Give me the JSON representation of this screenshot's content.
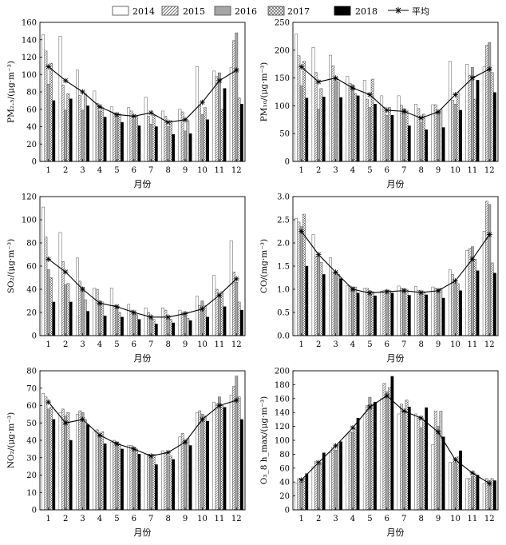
{
  "legend": {
    "s2014": "2014",
    "s2015": "2015",
    "s2016": "2016",
    "s2017": "2017",
    "s2018": "2018",
    "avg": "平均"
  },
  "colors": {
    "s2016": "#a6a6a6",
    "s2018": "#000000",
    "line": "#000000",
    "bar_stroke": "#444444"
  },
  "series_names": [
    "2014",
    "2015",
    "2016",
    "2017",
    "2018"
  ],
  "chart_data": [
    {
      "id": "pm25",
      "type": "bar",
      "ylabel": "PM₂.₅/(μg·m⁻³)",
      "xlabel": "月份",
      "categories": [
        "1",
        "2",
        "3",
        "4",
        "5",
        "6",
        "7",
        "8",
        "9",
        "10",
        "11",
        "12"
      ],
      "ylim": [
        0,
        160
      ],
      "yticks": [
        0,
        20,
        40,
        60,
        80,
        100,
        120,
        140,
        160
      ],
      "series": [
        {
          "name": "2014",
          "values": [
            146,
            144,
            105,
            81,
            63,
            62,
            74,
            58,
            60,
            109,
            104,
            108
          ]
        },
        {
          "name": "2015",
          "values": [
            127,
            88,
            76,
            67,
            55,
            58,
            52,
            52,
            57,
            65,
            98,
            139
          ]
        },
        {
          "name": "2016",
          "values": [
            89,
            59,
            59,
            58,
            52,
            48,
            43,
            40,
            35,
            54,
            102,
            148
          ]
        },
        {
          "name": "2017",
          "values": [
            113,
            78,
            78,
            62,
            55,
            52,
            53,
            47,
            47,
            62,
            60,
            73
          ]
        },
        {
          "name": "2018",
          "values": [
            70,
            72,
            64,
            51,
            45,
            41,
            40,
            31,
            32,
            48,
            84,
            66
          ]
        }
      ],
      "average": [
        109,
        93,
        80,
        63,
        54,
        52,
        56,
        45,
        48,
        68,
        93,
        105
      ]
    },
    {
      "id": "pm10",
      "type": "bar",
      "ylabel": "PM₁₀/(μg·m⁻³)",
      "xlabel": "月份",
      "categories": [
        "1",
        "2",
        "3",
        "4",
        "5",
        "6",
        "7",
        "8",
        "9",
        "10",
        "11",
        "12"
      ],
      "ylim": [
        0,
        250
      ],
      "yticks": [
        0,
        50,
        100,
        150,
        200,
        250
      ],
      "series": [
        {
          "name": "2014",
          "values": [
            229,
            205,
            191,
            153,
            146,
            118,
            118,
            103,
            102,
            180,
            175,
            170
          ]
        },
        {
          "name": "2015",
          "values": [
            190,
            160,
            172,
            140,
            112,
            97,
            101,
            95,
            102,
            110,
            155,
            209
          ]
        },
        {
          "name": "2016",
          "values": [
            136,
            94,
            150,
            138,
            97,
            83,
            95,
            71,
            86,
            103,
            169,
            214
          ]
        },
        {
          "name": "2017",
          "values": [
            180,
            131,
            143,
            122,
            148,
            97,
            92,
            85,
            93,
            124,
            112,
            160
          ]
        },
        {
          "name": "2018",
          "values": [
            114,
            116,
            115,
            118,
            103,
            83,
            64,
            57,
            61,
            92,
            146,
            124
          ]
        }
      ],
      "average": [
        170,
        143,
        150,
        132,
        120,
        92,
        90,
        78,
        89,
        120,
        150,
        166
      ]
    },
    {
      "id": "so2",
      "type": "bar",
      "ylabel": "SO₂/(μg·m⁻³)",
      "xlabel": "月份",
      "categories": [
        "1",
        "2",
        "3",
        "4",
        "5",
        "6",
        "7",
        "8",
        "9",
        "10",
        "11",
        "12"
      ],
      "ylim": [
        0,
        120
      ],
      "yticks": [
        0,
        20,
        40,
        60,
        80,
        100,
        120
      ],
      "series": [
        {
          "name": "2014",
          "values": [
            111,
            89,
            67,
            41,
            41,
            27,
            24,
            24,
            22,
            34,
            52,
            82
          ]
        },
        {
          "name": "2015",
          "values": [
            85,
            64,
            47,
            40,
            26,
            22,
            20,
            22,
            20,
            26,
            40,
            55
          ]
        },
        {
          "name": "2016",
          "values": [
            57,
            44,
            42,
            30,
            24,
            20,
            16,
            16,
            17,
            30,
            34,
            46
          ]
        },
        {
          "name": "2017",
          "values": [
            50,
            45,
            31,
            29,
            20,
            18,
            14,
            14,
            15,
            26,
            38,
            29
          ]
        },
        {
          "name": "2018",
          "values": [
            29,
            29,
            21,
            17,
            16,
            14,
            10,
            11,
            13,
            16,
            25,
            22
          ]
        }
      ],
      "average": [
        66,
        55,
        40,
        28,
        25,
        20,
        16,
        16,
        19,
        23,
        35,
        49
      ]
    },
    {
      "id": "co",
      "type": "bar",
      "ylabel": "CO/(mg·m⁻³)",
      "xlabel": "月份",
      "categories": [
        "1",
        "2",
        "3",
        "4",
        "5",
        "6",
        "7",
        "8",
        "9",
        "10",
        "11",
        "12"
      ],
      "ylim": [
        0,
        3.0
      ],
      "yticks": [
        0,
        0.5,
        1.0,
        1.5,
        2.0,
        2.5,
        3.0
      ],
      "series": [
        {
          "name": "2014",
          "values": [
            2.53,
            2.18,
            1.68,
            1.08,
            1.02,
            0.96,
            1.07,
            1.06,
            1.05,
            1.42,
            1.84,
            2.25
          ]
        },
        {
          "name": "2015",
          "values": [
            2.45,
            1.72,
            1.37,
            1.07,
            1.02,
            0.97,
            1.02,
            0.98,
            1.02,
            1.32,
            1.88,
            2.9
          ]
        },
        {
          "name": "2016",
          "values": [
            2.35,
            1.72,
            1.38,
            1.05,
            0.97,
            0.98,
            1.01,
            0.94,
            1.0,
            1.13,
            1.92,
            2.83
          ]
        },
        {
          "name": "2017",
          "values": [
            2.62,
            1.58,
            1.32,
            1.05,
            0.95,
            0.97,
            1.0,
            0.95,
            1.02,
            1.12,
            1.65,
            1.57
          ]
        },
        {
          "name": "2018",
          "values": [
            1.5,
            1.32,
            1.23,
            0.92,
            0.86,
            0.92,
            0.87,
            0.88,
            0.81,
            0.97,
            1.4,
            1.35
          ]
        }
      ],
      "average": [
        2.25,
        1.75,
        1.37,
        1.0,
        0.92,
        0.95,
        0.97,
        0.93,
        0.97,
        1.18,
        1.65,
        2.18
      ]
    },
    {
      "id": "no2",
      "type": "bar",
      "ylabel": "NO₂/(μg·m⁻³)",
      "xlabel": "月份",
      "categories": [
        "1",
        "2",
        "3",
        "4",
        "5",
        "6",
        "7",
        "8",
        "9",
        "10",
        "11",
        "12"
      ],
      "ylim": [
        0,
        80
      ],
      "yticks": [
        0,
        10,
        20,
        30,
        40,
        50,
        60,
        70,
        80
      ],
      "series": [
        {
          "name": "2014",
          "values": [
            67,
            56,
            55,
            45,
            39,
            37,
            32,
            34,
            42,
            56,
            62,
            66
          ]
        },
        {
          "name": "2015",
          "values": [
            65,
            58,
            57,
            46,
            40,
            37,
            32,
            33,
            44,
            57,
            61,
            71
          ]
        },
        {
          "name": "2016",
          "values": [
            58,
            54,
            56,
            43,
            39,
            36,
            31,
            31,
            40,
            55,
            65,
            77
          ]
        },
        {
          "name": "2017",
          "values": [
            59,
            56,
            52,
            45,
            38,
            35,
            32,
            31,
            41,
            54,
            60,
            65
          ]
        },
        {
          "name": "2018",
          "values": [
            52,
            40,
            49,
            38,
            35,
            32,
            26,
            29,
            37,
            51,
            59,
            52
          ]
        }
      ],
      "average": [
        62,
        50,
        52,
        43,
        38,
        35,
        31,
        33,
        39,
        52,
        60,
        63
      ]
    },
    {
      "id": "o3",
      "type": "bar",
      "ylabel": "O₃_8 h_max/(μg·m⁻³)",
      "xlabel": "月份",
      "categories": [
        "1",
        "2",
        "3",
        "4",
        "5",
        "6",
        "7",
        "8",
        "9",
        "10",
        "11",
        "12"
      ],
      "ylim": [
        0,
        200
      ],
      "yticks": [
        0,
        20,
        40,
        60,
        80,
        100,
        120,
        140,
        160,
        180,
        200
      ],
      "series": [
        {
          "name": "2014",
          "values": [
            38,
            62,
            82,
            108,
            138,
            160,
            138,
            138,
            94,
            68,
            45,
            38
          ]
        },
        {
          "name": "2015",
          "values": [
            45,
            70,
            90,
            112,
            150,
            182,
            152,
            132,
            142,
            68,
            45,
            45
          ]
        },
        {
          "name": "2016",
          "values": [
            40,
            65,
            86,
            112,
            162,
            170,
            138,
            118,
            120,
            68,
            48,
            42
          ]
        },
        {
          "name": "2017",
          "values": [
            45,
            67,
            94,
            118,
            152,
            176,
            158,
            128,
            142,
            76,
            52,
            45
          ]
        },
        {
          "name": "2018",
          "values": [
            52,
            82,
            98,
            132,
            155,
            192,
            148,
            147,
            105,
            85,
            50,
            42
          ]
        }
      ],
      "average": [
        43,
        68,
        92,
        118,
        148,
        164,
        142,
        132,
        112,
        72,
        53,
        38
      ]
    }
  ]
}
